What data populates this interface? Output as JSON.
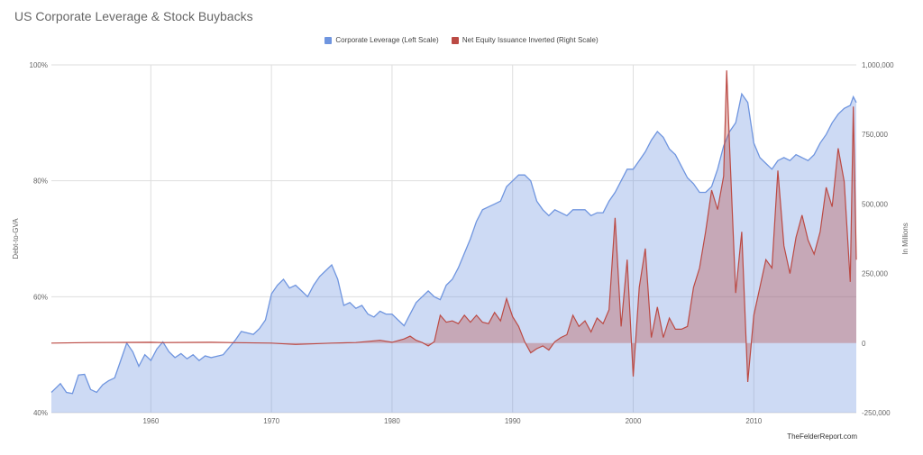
{
  "chart_data": {
    "type": "area",
    "title": "US Corporate Leverage & Stock Buybacks",
    "xlabel": "",
    "ylabel": "Debt-to-GVA",
    "ylabel_right": "In Millions",
    "x_ticks": [
      "1960",
      "1970",
      "1980",
      "1990",
      "2000",
      "2010"
    ],
    "xlim": [
      1951.75,
      2018.5
    ],
    "y_left_ticks": [
      "40%",
      "60%",
      "80%",
      "100%"
    ],
    "y_left_lim": [
      40,
      100
    ],
    "y_right_ticks": [
      "-250,000",
      "0",
      "250,000",
      "500,000",
      "750,000",
      "1,000,000"
    ],
    "y_right_lim": [
      -250000,
      1000000
    ],
    "grid": true,
    "legend_position": "top-center",
    "series": [
      {
        "name": "Corporate Leverage (Left Scale)",
        "axis": "left",
        "color": "#6f95df",
        "points": [
          [
            1951.75,
            43.5
          ],
          [
            1952.0,
            44.0
          ],
          [
            1952.5,
            45.0
          ],
          [
            1953.0,
            43.5
          ],
          [
            1953.5,
            43.3
          ],
          [
            1954.0,
            46.5
          ],
          [
            1954.5,
            46.6
          ],
          [
            1955.0,
            44.0
          ],
          [
            1955.5,
            43.5
          ],
          [
            1956.0,
            44.8
          ],
          [
            1956.5,
            45.5
          ],
          [
            1957.0,
            46.0
          ],
          [
            1957.5,
            49.0
          ],
          [
            1958.0,
            52.0
          ],
          [
            1958.5,
            50.5
          ],
          [
            1959.0,
            48.0
          ],
          [
            1959.5,
            50.0
          ],
          [
            1960.0,
            49.0
          ],
          [
            1960.5,
            51.0
          ],
          [
            1961.0,
            52.2
          ],
          [
            1961.5,
            50.5
          ],
          [
            1962.0,
            49.5
          ],
          [
            1962.5,
            50.2
          ],
          [
            1963.0,
            49.3
          ],
          [
            1963.5,
            50.0
          ],
          [
            1964.0,
            49.0
          ],
          [
            1964.5,
            49.8
          ],
          [
            1965.0,
            49.5
          ],
          [
            1966.0,
            50.0
          ],
          [
            1967.0,
            52.5
          ],
          [
            1967.5,
            54.0
          ],
          [
            1968.5,
            53.5
          ],
          [
            1969.0,
            54.5
          ],
          [
            1969.5,
            56.0
          ],
          [
            1970.0,
            60.5
          ],
          [
            1970.5,
            62.0
          ],
          [
            1971.0,
            63.0
          ],
          [
            1971.5,
            61.5
          ],
          [
            1972.0,
            62.0
          ],
          [
            1972.5,
            61.0
          ],
          [
            1973.0,
            60.0
          ],
          [
            1973.5,
            62.0
          ],
          [
            1974.0,
            63.5
          ],
          [
            1974.5,
            64.5
          ],
          [
            1975.0,
            65.5
          ],
          [
            1975.5,
            63.0
          ],
          [
            1976.0,
            58.5
          ],
          [
            1976.5,
            59.0
          ],
          [
            1977.0,
            58.0
          ],
          [
            1977.5,
            58.5
          ],
          [
            1978.0,
            57.0
          ],
          [
            1978.5,
            56.5
          ],
          [
            1979.0,
            57.5
          ],
          [
            1979.5,
            57.0
          ],
          [
            1980.0,
            57.0
          ],
          [
            1980.5,
            56.0
          ],
          [
            1981.0,
            55.0
          ],
          [
            1981.5,
            57.0
          ],
          [
            1982.0,
            59.0
          ],
          [
            1982.5,
            60.0
          ],
          [
            1983.0,
            61.0
          ],
          [
            1983.5,
            60.0
          ],
          [
            1984.0,
            59.5
          ],
          [
            1984.5,
            62.0
          ],
          [
            1985.0,
            63.0
          ],
          [
            1985.5,
            65.0
          ],
          [
            1986.0,
            67.5
          ],
          [
            1986.5,
            70.0
          ],
          [
            1987.0,
            73.0
          ],
          [
            1987.5,
            75.0
          ],
          [
            1988.0,
            75.5
          ],
          [
            1988.5,
            76.0
          ],
          [
            1989.0,
            76.5
          ],
          [
            1989.5,
            79.0
          ],
          [
            1990.0,
            80.0
          ],
          [
            1990.5,
            81.0
          ],
          [
            1991.0,
            81.0
          ],
          [
            1991.5,
            80.0
          ],
          [
            1992.0,
            76.5
          ],
          [
            1992.5,
            75.0
          ],
          [
            1993.0,
            74.0
          ],
          [
            1993.5,
            75.0
          ],
          [
            1994.0,
            74.5
          ],
          [
            1994.5,
            74.0
          ],
          [
            1995.0,
            75.0
          ],
          [
            1996.0,
            75.0
          ],
          [
            1996.5,
            74.0
          ],
          [
            1997.0,
            74.5
          ],
          [
            1997.5,
            74.5
          ],
          [
            1998.0,
            76.5
          ],
          [
            1998.5,
            78.0
          ],
          [
            1999.0,
            80.0
          ],
          [
            1999.5,
            82.0
          ],
          [
            2000.0,
            82.0
          ],
          [
            2000.5,
            83.5
          ],
          [
            2001.0,
            85.0
          ],
          [
            2001.5,
            87.0
          ],
          [
            2002.0,
            88.5
          ],
          [
            2002.5,
            87.5
          ],
          [
            2003.0,
            85.5
          ],
          [
            2003.5,
            84.5
          ],
          [
            2004.0,
            82.5
          ],
          [
            2004.5,
            80.5
          ],
          [
            2005.0,
            79.5
          ],
          [
            2005.5,
            78.0
          ],
          [
            2006.0,
            78.0
          ],
          [
            2006.5,
            79.0
          ],
          [
            2007.0,
            82.0
          ],
          [
            2007.5,
            86.0
          ],
          [
            2008.0,
            88.5
          ],
          [
            2008.5,
            90.0
          ],
          [
            2009.0,
            95.0
          ],
          [
            2009.5,
            93.5
          ],
          [
            2010.0,
            86.5
          ],
          [
            2010.5,
            84.0
          ],
          [
            2011.0,
            83.0
          ],
          [
            2011.5,
            82.0
          ],
          [
            2012.0,
            83.5
          ],
          [
            2012.5,
            84.0
          ],
          [
            2013.0,
            83.5
          ],
          [
            2013.5,
            84.5
          ],
          [
            2014.0,
            84.0
          ],
          [
            2014.5,
            83.5
          ],
          [
            2015.0,
            84.5
          ],
          [
            2015.5,
            86.5
          ],
          [
            2016.0,
            88.0
          ],
          [
            2016.5,
            90.0
          ],
          [
            2017.0,
            91.5
          ],
          [
            2017.5,
            92.5
          ],
          [
            2018.0,
            93.0
          ],
          [
            2018.25,
            94.5
          ],
          [
            2018.5,
            93.5
          ]
        ]
      },
      {
        "name": "Net Equity Issuance Inverted (Right Scale)",
        "axis": "right",
        "color": "#bb4a44",
        "points": [
          [
            1951.75,
            0
          ],
          [
            1955.0,
            2000
          ],
          [
            1960.0,
            3000
          ],
          [
            1961.0,
            2000
          ],
          [
            1965.0,
            3000
          ],
          [
            1970.0,
            0
          ],
          [
            1972.0,
            -5000
          ],
          [
            1975.0,
            0
          ],
          [
            1977.0,
            2000
          ],
          [
            1979.0,
            10000
          ],
          [
            1980.0,
            3000
          ],
          [
            1981.0,
            15000
          ],
          [
            1981.5,
            25000
          ],
          [
            1982.0,
            10000
          ],
          [
            1982.5,
            2000
          ],
          [
            1983.0,
            -10000
          ],
          [
            1983.5,
            5000
          ],
          [
            1984.0,
            100000
          ],
          [
            1984.5,
            75000
          ],
          [
            1985.0,
            80000
          ],
          [
            1985.5,
            70000
          ],
          [
            1986.0,
            100000
          ],
          [
            1986.5,
            75000
          ],
          [
            1987.0,
            100000
          ],
          [
            1987.5,
            75000
          ],
          [
            1988.0,
            70000
          ],
          [
            1988.5,
            110000
          ],
          [
            1989.0,
            80000
          ],
          [
            1989.5,
            160000
          ],
          [
            1990.0,
            95000
          ],
          [
            1990.5,
            60000
          ],
          [
            1991.0,
            5000
          ],
          [
            1991.5,
            -35000
          ],
          [
            1992.0,
            -20000
          ],
          [
            1992.5,
            -10000
          ],
          [
            1993.0,
            -25000
          ],
          [
            1993.5,
            5000
          ],
          [
            1994.0,
            20000
          ],
          [
            1994.5,
            30000
          ],
          [
            1995.0,
            100000
          ],
          [
            1995.5,
            60000
          ],
          [
            1996.0,
            80000
          ],
          [
            1996.5,
            40000
          ],
          [
            1997.0,
            90000
          ],
          [
            1997.5,
            70000
          ],
          [
            1998.0,
            120000
          ],
          [
            1998.5,
            450000
          ],
          [
            1999.0,
            60000
          ],
          [
            1999.5,
            300000
          ],
          [
            2000.0,
            -120000
          ],
          [
            2000.5,
            200000
          ],
          [
            2001.0,
            340000
          ],
          [
            2001.5,
            20000
          ],
          [
            2002.0,
            130000
          ],
          [
            2002.5,
            20000
          ],
          [
            2003.0,
            90000
          ],
          [
            2003.5,
            50000
          ],
          [
            2004.0,
            50000
          ],
          [
            2004.5,
            60000
          ],
          [
            2005.0,
            200000
          ],
          [
            2005.5,
            270000
          ],
          [
            2006.0,
            400000
          ],
          [
            2006.5,
            550000
          ],
          [
            2007.0,
            480000
          ],
          [
            2007.5,
            600000
          ],
          [
            2007.75,
            980000
          ],
          [
            2008.0,
            700000
          ],
          [
            2008.5,
            180000
          ],
          [
            2009.0,
            400000
          ],
          [
            2009.5,
            -140000
          ],
          [
            2010.0,
            100000
          ],
          [
            2010.5,
            200000
          ],
          [
            2011.0,
            300000
          ],
          [
            2011.5,
            270000
          ],
          [
            2012.0,
            620000
          ],
          [
            2012.5,
            350000
          ],
          [
            2013.0,
            250000
          ],
          [
            2013.5,
            380000
          ],
          [
            2014.0,
            460000
          ],
          [
            2014.5,
            370000
          ],
          [
            2015.0,
            320000
          ],
          [
            2015.5,
            400000
          ],
          [
            2016.0,
            560000
          ],
          [
            2016.5,
            490000
          ],
          [
            2017.0,
            700000
          ],
          [
            2017.5,
            580000
          ],
          [
            2018.0,
            220000
          ],
          [
            2018.25,
            850000
          ],
          [
            2018.5,
            300000
          ]
        ]
      }
    ],
    "source_credit": "TheFelderReport.com"
  }
}
